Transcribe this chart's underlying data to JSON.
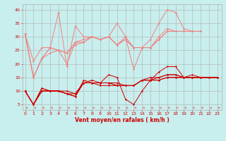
{
  "background_color": "#c8eeed",
  "grid_color": "#b0b0b0",
  "xlabel": "Vent moyen/en rafales ( km/h )",
  "x_ticks": [
    0,
    1,
    2,
    3,
    4,
    5,
    6,
    7,
    8,
    9,
    10,
    11,
    12,
    13,
    14,
    15,
    16,
    17,
    18,
    19,
    20,
    21,
    22,
    23
  ],
  "ylim": [
    3,
    42
  ],
  "xlim": [
    -0.3,
    23.5
  ],
  "y_ticks": [
    5,
    10,
    15,
    20,
    25,
    30,
    35,
    40
  ],
  "light_red": "#f08080",
  "dark_red": "#cc0000",
  "arrow_color": "#e06060",
  "lines_light": [
    [
      31,
      15,
      22,
      26,
      39,
      19,
      34,
      30,
      30,
      29,
      30,
      35,
      30,
      18,
      26,
      29,
      35,
      40,
      39,
      33,
      32,
      32
    ],
    [
      31,
      21,
      26,
      26,
      25,
      20,
      28,
      28,
      30,
      29,
      30,
      27,
      29,
      26,
      26,
      26,
      29,
      32,
      32,
      32,
      32,
      32
    ],
    [
      31,
      15,
      22,
      26,
      25,
      24,
      28,
      29,
      30,
      29,
      30,
      27,
      30,
      26,
      26,
      26,
      30,
      33,
      32,
      32,
      32,
      32
    ],
    [
      31,
      15,
      22,
      24,
      25,
      24,
      27,
      28,
      30,
      29,
      30,
      27,
      29,
      26,
      26,
      26,
      29,
      32,
      32,
      32,
      32,
      32
    ]
  ],
  "lines_light_x": [
    [
      0,
      1,
      2,
      3,
      4,
      5,
      6,
      7,
      8,
      9,
      10,
      11,
      12,
      13,
      14,
      15,
      16,
      17,
      18,
      19,
      20,
      21
    ],
    [
      0,
      1,
      2,
      3,
      4,
      5,
      6,
      7,
      8,
      9,
      10,
      11,
      12,
      13,
      14,
      15,
      16,
      17,
      18,
      19,
      20,
      21
    ],
    [
      0,
      1,
      2,
      3,
      4,
      5,
      6,
      7,
      8,
      9,
      10,
      11,
      12,
      13,
      14,
      15,
      16,
      17,
      18,
      19,
      20,
      21
    ],
    [
      0,
      1,
      2,
      3,
      4,
      5,
      6,
      7,
      8,
      9,
      10,
      11,
      12,
      13,
      14,
      15,
      16,
      17,
      18,
      19,
      20,
      21
    ]
  ],
  "lines_dark": [
    [
      10,
      5,
      11,
      10,
      10,
      9,
      8,
      14,
      13,
      13,
      16,
      15,
      7,
      5,
      10,
      14,
      17,
      19,
      19,
      15,
      15,
      15,
      15,
      15
    ],
    [
      10,
      5,
      11,
      10,
      10,
      9,
      8,
      13,
      13,
      13,
      13,
      12,
      12,
      12,
      14,
      14,
      14,
      15,
      15,
      15,
      15,
      15,
      15,
      15
    ],
    [
      10,
      5,
      10,
      10,
      10,
      9,
      8,
      13,
      13,
      12,
      12,
      12,
      12,
      12,
      14,
      14,
      14,
      15,
      15,
      15,
      15,
      15,
      15,
      15
    ],
    [
      10,
      5,
      10,
      10,
      10,
      9,
      9,
      13,
      13,
      13,
      13,
      12,
      12,
      12,
      14,
      14,
      15,
      16,
      16,
      15,
      15,
      15,
      15,
      15
    ],
    [
      10,
      5,
      10,
      10,
      10,
      10,
      9,
      13,
      14,
      13,
      13,
      13,
      12,
      12,
      14,
      15,
      15,
      16,
      16,
      15,
      16,
      15,
      15,
      15
    ]
  ],
  "lines_dark_x": [
    [
      0,
      1,
      2,
      3,
      4,
      5,
      6,
      7,
      8,
      9,
      10,
      11,
      12,
      13,
      14,
      15,
      16,
      17,
      18,
      19,
      20,
      21,
      22,
      23
    ],
    [
      0,
      1,
      2,
      3,
      4,
      5,
      6,
      7,
      8,
      9,
      10,
      11,
      12,
      13,
      14,
      15,
      16,
      17,
      18,
      19,
      20,
      21,
      22,
      23
    ],
    [
      0,
      1,
      2,
      3,
      4,
      5,
      6,
      7,
      8,
      9,
      10,
      11,
      12,
      13,
      14,
      15,
      16,
      17,
      18,
      19,
      20,
      21,
      22,
      23
    ],
    [
      0,
      1,
      2,
      3,
      4,
      5,
      6,
      7,
      8,
      9,
      10,
      11,
      12,
      13,
      14,
      15,
      16,
      17,
      18,
      19,
      20,
      21,
      22,
      23
    ],
    [
      0,
      1,
      2,
      3,
      4,
      5,
      6,
      7,
      8,
      9,
      10,
      11,
      12,
      13,
      14,
      15,
      16,
      17,
      18,
      19,
      20,
      21,
      22,
      23
    ]
  ]
}
